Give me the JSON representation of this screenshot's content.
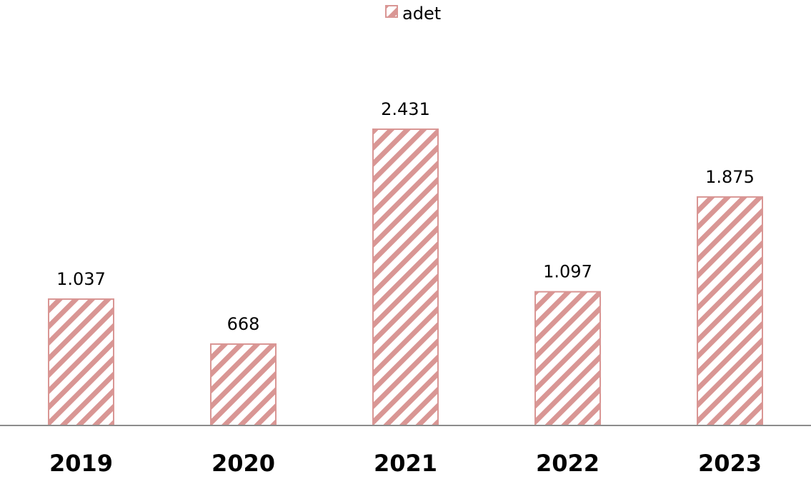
{
  "chart_data": {
    "type": "bar",
    "categories": [
      "2019",
      "2020",
      "2021",
      "2022",
      "2023"
    ],
    "series": [
      {
        "name": "adet",
        "values": [
          1037,
          668,
          2431,
          1097,
          1875
        ]
      }
    ],
    "value_labels": [
      "1.037",
      "668",
      "2.431",
      "1.097",
      "1.875"
    ],
    "legend_position": "top-center",
    "grid": false,
    "fill_pattern": "diagonal-hatch",
    "colors": {
      "bar_fill": "#d99694",
      "bar_background": "#ffffff",
      "axis_line": "#8c8c8c"
    }
  }
}
